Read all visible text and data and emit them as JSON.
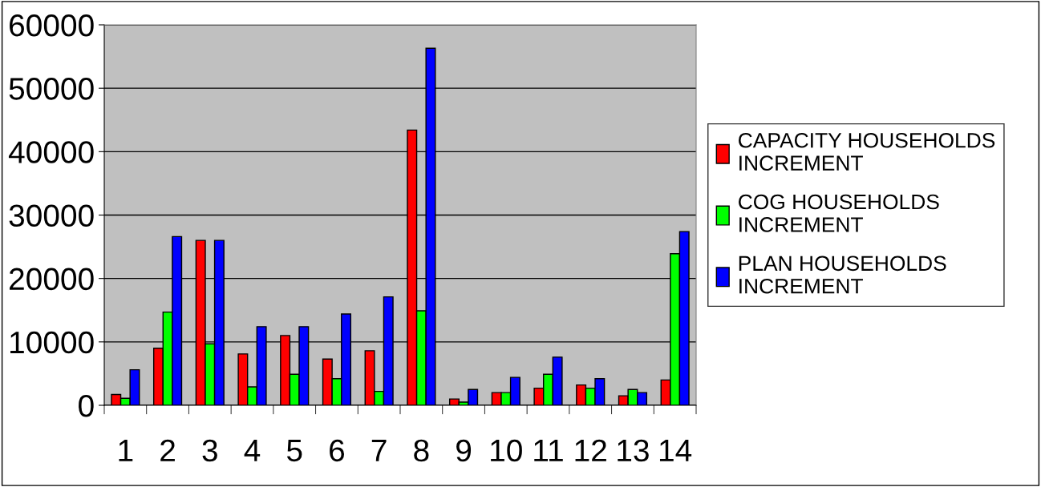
{
  "chart_data": {
    "type": "bar",
    "categories": [
      "1",
      "2",
      "3",
      "4",
      "5",
      "6",
      "7",
      "8",
      "9",
      "10",
      "11",
      "12",
      "13",
      "14"
    ],
    "series": [
      {
        "name": "CAPACITY HOUSEHOLDS INCREMENT",
        "color": "#ff0000",
        "values": [
          1700,
          9000,
          26000,
          8100,
          11000,
          7300,
          8600,
          43400,
          1000,
          2000,
          2700,
          3200,
          1500,
          4000
        ]
      },
      {
        "name": "COG HOUSEHOLDS INCREMENT",
        "color": "#00ff00",
        "values": [
          1100,
          14700,
          9700,
          2900,
          4900,
          4200,
          2200,
          14900,
          500,
          2000,
          4900,
          2700,
          2500,
          23900
        ]
      },
      {
        "name": "PLAN HOUSEHOLDS INCREMENT",
        "color": "#0000ff",
        "values": [
          5600,
          26600,
          26000,
          12400,
          12400,
          14400,
          17100,
          56300,
          2500,
          4400,
          7600,
          4200,
          2000,
          27400
        ]
      }
    ],
    "ylim": [
      0,
      60000
    ],
    "yticks": [
      0,
      10000,
      20000,
      30000,
      40000,
      50000,
      60000
    ],
    "grid": "y",
    "legend": "right"
  }
}
